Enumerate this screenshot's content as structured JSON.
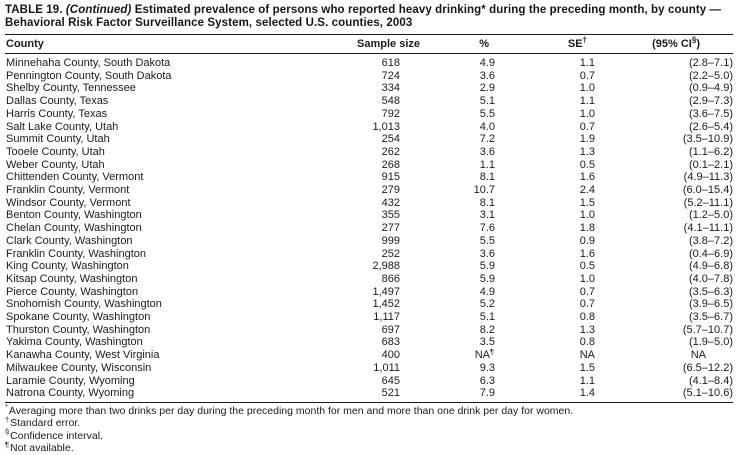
{
  "title": {
    "prefix": "TABLE 19.",
    "continued": "(Continued)",
    "line1_rest": "Estimated prevalence of persons who reported heavy drinking* during the preceding month, by county —",
    "line2": "Behavioral Risk Factor Surveillance System, selected U.S. counties, 2003"
  },
  "table": {
    "headers": {
      "county": "County",
      "sample": "Sample size",
      "pct": "%",
      "se": "SE",
      "se_sup": "†",
      "ci_open": "(95% CI",
      "ci_sup": "§",
      "ci_close": ")"
    },
    "rows": [
      {
        "county": "Minnehaha County, South Dakota",
        "sample": "618",
        "pct": "4.9",
        "se": "1.1",
        "ci": "(2.8–7.1)"
      },
      {
        "county": "Pennington County, South Dakota",
        "sample": "724",
        "pct": "3.6",
        "se": "0.7",
        "ci": "(2.2–5.0)"
      },
      {
        "county": "Shelby County, Tennessee",
        "sample": "334",
        "pct": "2.9",
        "se": "1.0",
        "ci": "(0.9–4.9)"
      },
      {
        "county": "Dallas County, Texas",
        "sample": "548",
        "pct": "5.1",
        "se": "1.1",
        "ci": "(2.9–7.3)"
      },
      {
        "county": "Harris County, Texas",
        "sample": "792",
        "pct": "5.5",
        "se": "1.0",
        "ci": "(3.6–7.5)"
      },
      {
        "county": "Salt Lake County, Utah",
        "sample": "1,013",
        "pct": "4.0",
        "se": "0.7",
        "ci": "(2.6–5.4)"
      },
      {
        "county": "Summit County, Utah",
        "sample": "254",
        "pct": "7.2",
        "se": "1.9",
        "ci": "(3.5–10.9)"
      },
      {
        "county": "Tooele County, Utah",
        "sample": "262",
        "pct": "3.6",
        "se": "1.3",
        "ci": "(1.1–6.2)"
      },
      {
        "county": "Weber County, Utah",
        "sample": "268",
        "pct": "1.1",
        "se": "0.5",
        "ci": "(0.1–2.1)"
      },
      {
        "county": "Chittenden County, Vermont",
        "sample": "915",
        "pct": "8.1",
        "se": "1.6",
        "ci": "(4.9–11.3)"
      },
      {
        "county": "Franklin County, Vermont",
        "sample": "279",
        "pct": "10.7",
        "se": "2.4",
        "ci": "(6.0–15.4)"
      },
      {
        "county": "Windsor County, Vermont",
        "sample": "432",
        "pct": "8.1",
        "se": "1.5",
        "ci": "(5.2–11.1)"
      },
      {
        "county": "Benton County, Washington",
        "sample": "355",
        "pct": "3.1",
        "se": "1.0",
        "ci": "(1.2–5.0)"
      },
      {
        "county": "Chelan County, Washington",
        "sample": "277",
        "pct": "7.6",
        "se": "1.8",
        "ci": "(4.1–11.1)"
      },
      {
        "county": "Clark County, Washington",
        "sample": "999",
        "pct": "5.5",
        "se": "0.9",
        "ci": "(3.8–7.2)"
      },
      {
        "county": "Franklin County, Washington",
        "sample": "252",
        "pct": "3.6",
        "se": "1.6",
        "ci": "(0.4–6.9)"
      },
      {
        "county": "King County, Washington",
        "sample": "2,988",
        "pct": "5.9",
        "se": "0.5",
        "ci": "(4.9–6.8)"
      },
      {
        "county": "Kitsap County, Washington",
        "sample": "866",
        "pct": "5.9",
        "se": "1.0",
        "ci": "(4.0–7.8)"
      },
      {
        "county": "Pierce County, Washington",
        "sample": "1,497",
        "pct": "4.9",
        "se": "0.7",
        "ci": "(3.5–6.3)"
      },
      {
        "county": "Snohomish County, Washington",
        "sample": "1,452",
        "pct": "5.2",
        "se": "0.7",
        "ci": "(3.9–6.5)"
      },
      {
        "county": "Spokane County, Washington",
        "sample": "1,117",
        "pct": "5.1",
        "se": "0.8",
        "ci": "(3.5–6.7)"
      },
      {
        "county": "Thurston County, Washington",
        "sample": "697",
        "pct": "8.2",
        "se": "1.3",
        "ci": "(5.7–10.7)"
      },
      {
        "county": "Yakima County, Washington",
        "sample": "683",
        "pct": "3.5",
        "se": "0.8",
        "ci": "(1.9–5.0)"
      },
      {
        "county": "Kanawha County, West Virginia",
        "sample": "400",
        "pct": "NA",
        "pct_sup": "¶",
        "se": "NA",
        "ci": "NA"
      },
      {
        "county": "Milwaukee County, Wisconsin",
        "sample": "1,011",
        "pct": "9.3",
        "se": "1.5",
        "ci": "(6.5–12.2)"
      },
      {
        "county": "Laramie County, Wyoming",
        "sample": "645",
        "pct": "6.3",
        "se": "1.1",
        "ci": "(4.1–8.4)"
      },
      {
        "county": "Natrona County, Wyoming",
        "sample": "521",
        "pct": "7.9",
        "se": "1.4",
        "ci": "(5.1–10.6)"
      }
    ]
  },
  "footnotes": [
    {
      "marker": "*",
      "text": "Averaging more than two drinks per day during the preceding month for men and more than one drink per day for women."
    },
    {
      "marker": "†",
      "text": "Standard error."
    },
    {
      "marker": "§",
      "text": "Confidence interval."
    },
    {
      "marker": "¶",
      "text": "Not available."
    }
  ]
}
